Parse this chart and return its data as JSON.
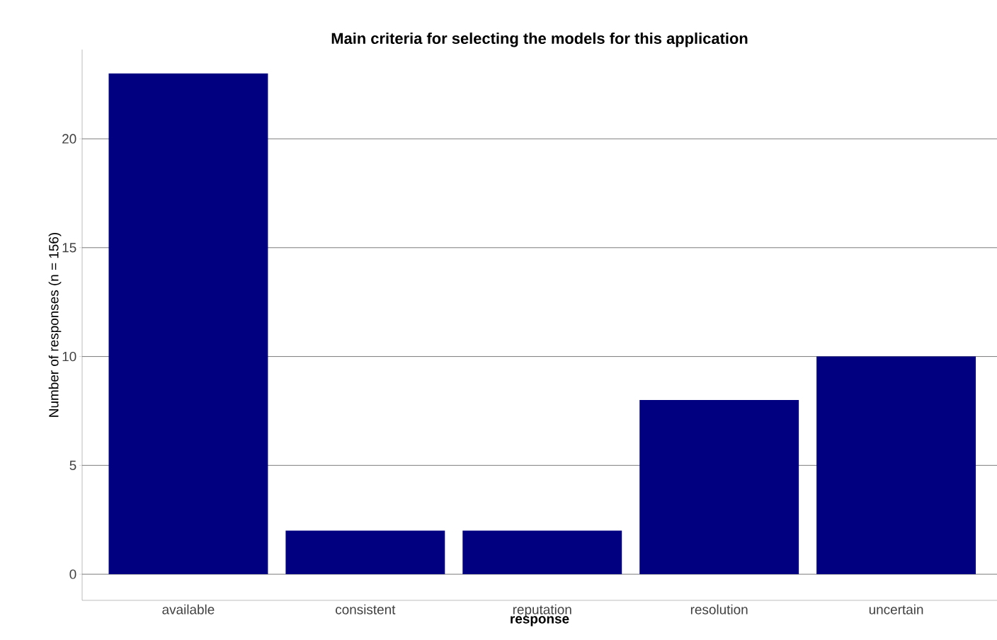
{
  "chart_data": {
    "type": "bar",
    "title": "Main criteria for selecting the models for this application",
    "xlabel": "response",
    "ylabel": "Number of responses (n = 156)",
    "categories": [
      "available",
      "consistent",
      "reputation",
      "resolution",
      "uncertain"
    ],
    "values": [
      23,
      2,
      2,
      8,
      10
    ],
    "color": "#000080",
    "ylim": [
      -1.2,
      24.1
    ],
    "yticks": [
      0,
      5,
      10,
      15,
      20
    ],
    "grid": "y"
  }
}
